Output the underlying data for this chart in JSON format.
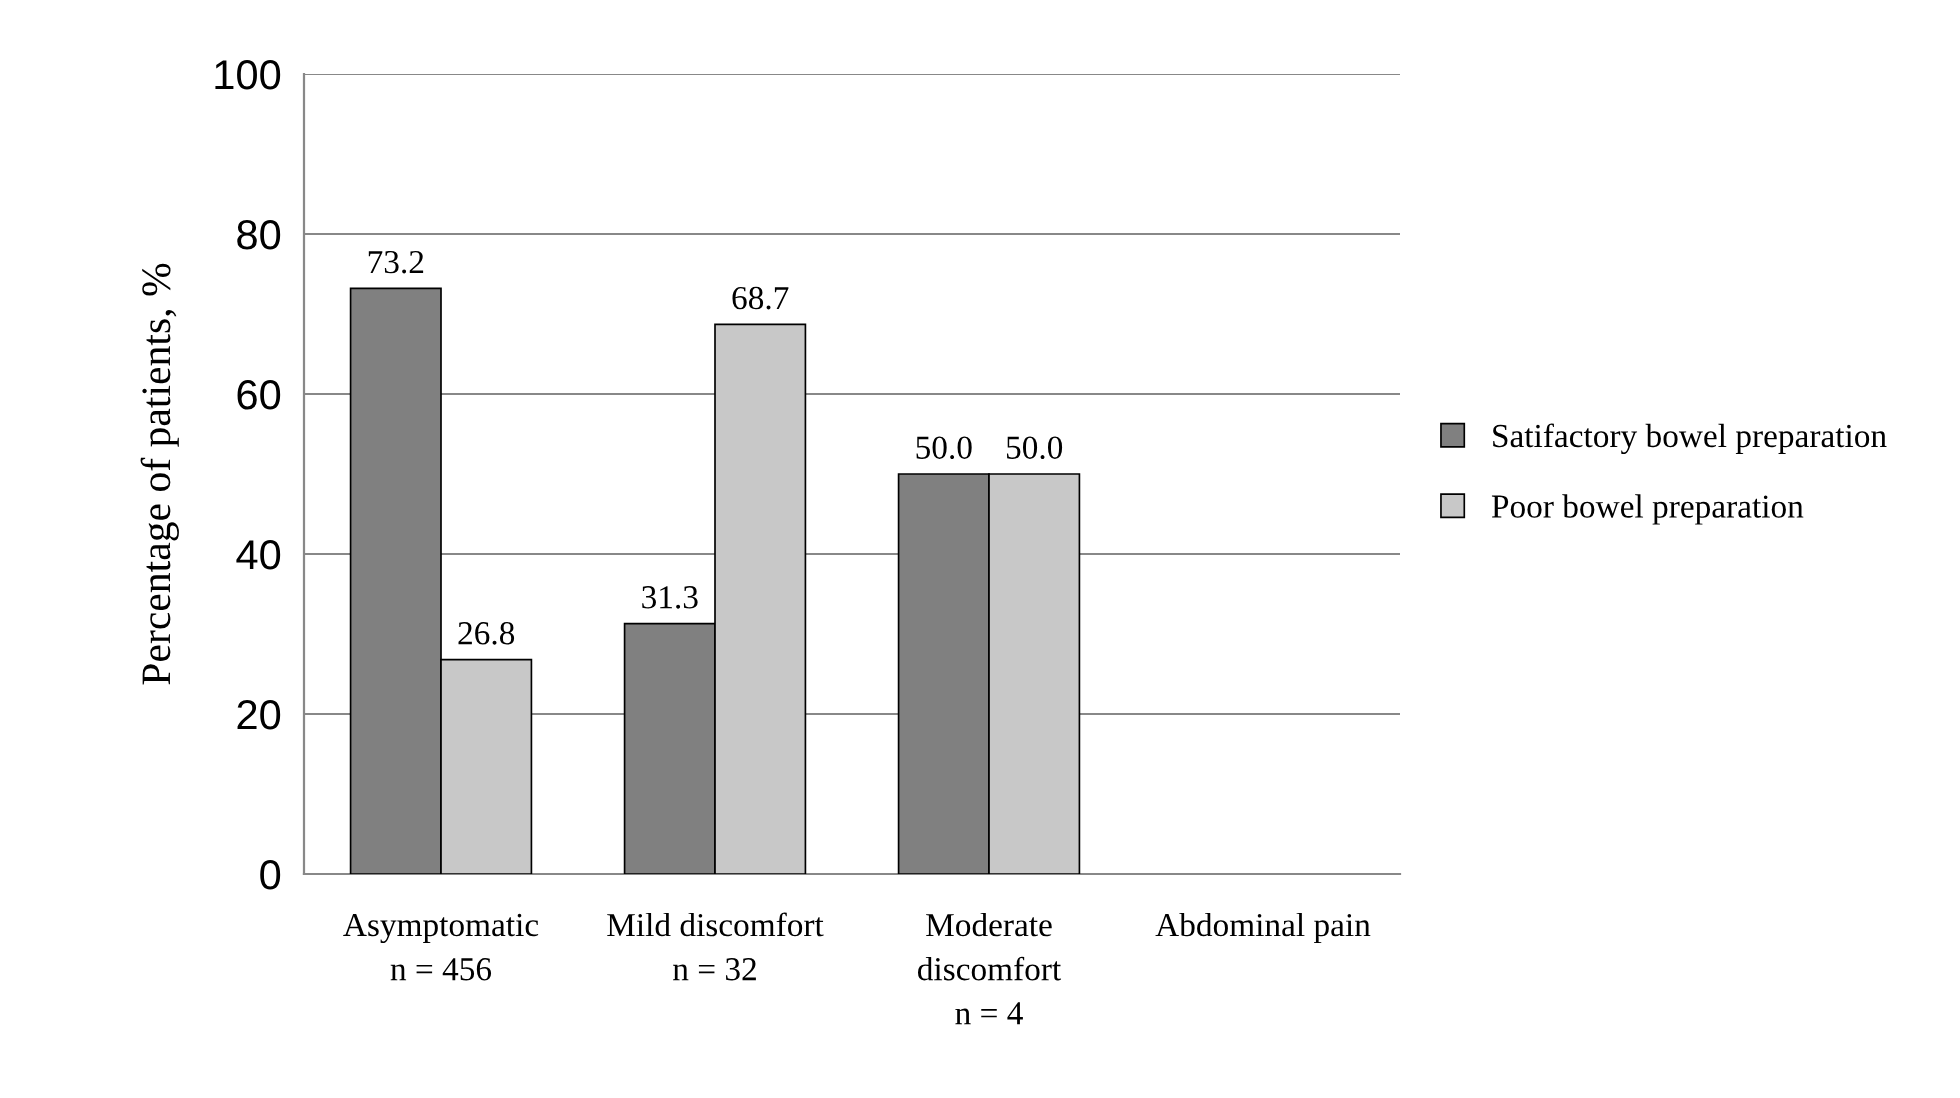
{
  "chart_data": {
    "type": "bar",
    "ylabel": "Percentage of patients, %",
    "categories": [
      "Asymptomatic\nn = 456",
      "Mild discomfort\nn = 32",
      "Moderate\ndiscomfort\nn = 4",
      "Abdominal pain"
    ],
    "series": [
      {
        "name": "Satifactory bowel preparation",
        "color": "#808080",
        "values": [
          73.2,
          31.3,
          50.0,
          null
        ],
        "value_labels": [
          "73.2",
          "31.3",
          "50.0",
          null
        ]
      },
      {
        "name": "Poor bowel preparation",
        "color": "#c8c8c8",
        "values": [
          26.8,
          68.7,
          50.0,
          null
        ],
        "value_labels": [
          "26.8",
          "68.7",
          "50.0",
          null
        ]
      }
    ],
    "ylim": [
      0,
      100
    ],
    "yticks": [
      0,
      20,
      40,
      60,
      80,
      100
    ],
    "grid": "y",
    "legend": "right"
  }
}
